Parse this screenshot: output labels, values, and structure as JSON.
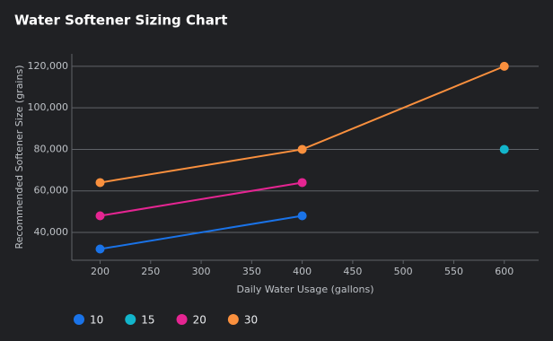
{
  "chart_data": {
    "type": "line",
    "title": "Water Softener Sizing Chart",
    "x_label": "Daily Water Usage (gallons)",
    "y_label": "Recommended Softener Size (grains)",
    "x": [
      200,
      400,
      600
    ],
    "series": [
      {
        "name": "10",
        "color": "#1a73e8",
        "values": [
          32000,
          48000,
          null
        ]
      },
      {
        "name": "15",
        "color": "#12b5cb",
        "values": [
          null,
          null,
          80000
        ]
      },
      {
        "name": "20",
        "color": "#e52592",
        "values": [
          48000,
          64000,
          null
        ]
      },
      {
        "name": "30",
        "color": "#fa903e",
        "values": [
          64000,
          80000,
          120000
        ]
      }
    ],
    "xlim": [
      172,
      634
    ],
    "ylim": [
      26600,
      126000
    ],
    "xticks": [
      200,
      250,
      300,
      350,
      400,
      450,
      500,
      550,
      600
    ],
    "yticks": [
      {
        "value": 40000,
        "label": "40,000"
      },
      {
        "value": 60000,
        "label": "60,000"
      },
      {
        "value": 80000,
        "label": "80,000"
      },
      {
        "value": 100000,
        "label": "100,000"
      },
      {
        "value": 120000,
        "label": "120,000"
      }
    ],
    "grid": true,
    "legend": "bottom"
  }
}
